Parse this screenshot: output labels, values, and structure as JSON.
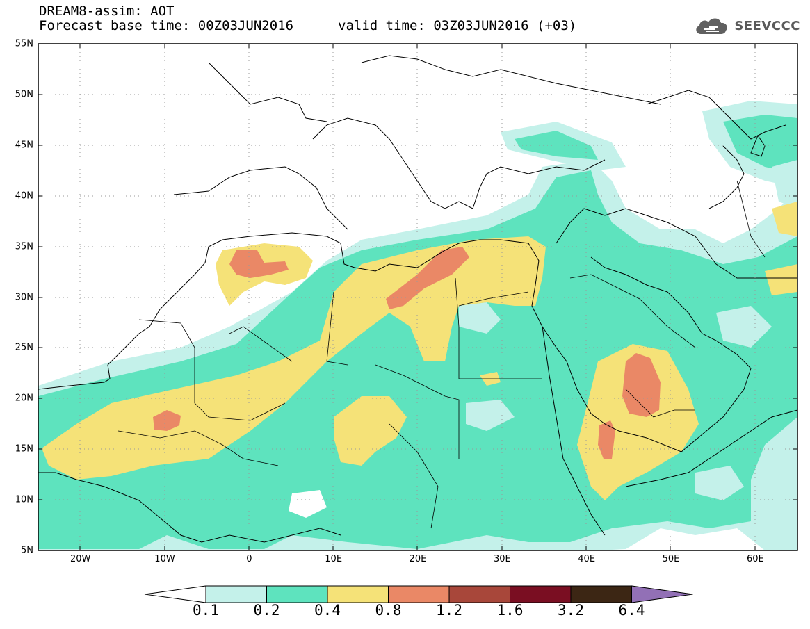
{
  "header": {
    "product": "DREAM8-assim: AOT",
    "base_time": "Forecast base time: 00Z03JUN2016",
    "valid_time": "valid time: 03Z03JUN2016 (+03)"
  },
  "logo": {
    "text": "SEEVCCC",
    "icon": "cloud-icon"
  },
  "map": {
    "lon_range": [
      -25,
      65
    ],
    "lat_range": [
      5,
      55
    ],
    "grid": "dotted",
    "lat_ticks": [
      {
        "value": 55,
        "label": "55N"
      },
      {
        "value": 50,
        "label": "50N"
      },
      {
        "value": 45,
        "label": "45N"
      },
      {
        "value": 40,
        "label": "40N"
      },
      {
        "value": 35,
        "label": "35N"
      },
      {
        "value": 30,
        "label": "30N"
      },
      {
        "value": 25,
        "label": "25N"
      },
      {
        "value": 20,
        "label": "20N"
      },
      {
        "value": 15,
        "label": "15N"
      },
      {
        "value": 10,
        "label": "10N"
      },
      {
        "value": 5,
        "label": "5N"
      }
    ],
    "lon_ticks": [
      {
        "value": -20,
        "label": "20W"
      },
      {
        "value": -10,
        "label": "10W"
      },
      {
        "value": 0,
        "label": "0"
      },
      {
        "value": 10,
        "label": "10E"
      },
      {
        "value": 20,
        "label": "20E"
      },
      {
        "value": 30,
        "label": "30E"
      },
      {
        "value": 40,
        "label": "40E"
      },
      {
        "value": 50,
        "label": "50E"
      },
      {
        "value": 60,
        "label": "60E"
      }
    ]
  },
  "legend": {
    "levels": [
      "0.1",
      "0.2",
      "0.4",
      "0.8",
      "1.2",
      "1.6",
      "3.2",
      "6.4"
    ],
    "colors": {
      "below": "#ffffff",
      "c1": "#c4f1ea",
      "c2": "#5ee3be",
      "c3": "#f5e278",
      "c4": "#ea8866",
      "c5": "#a8473a",
      "c6": "#7a0e22",
      "c7": "#3c2614",
      "above": "#9270b6"
    }
  }
}
